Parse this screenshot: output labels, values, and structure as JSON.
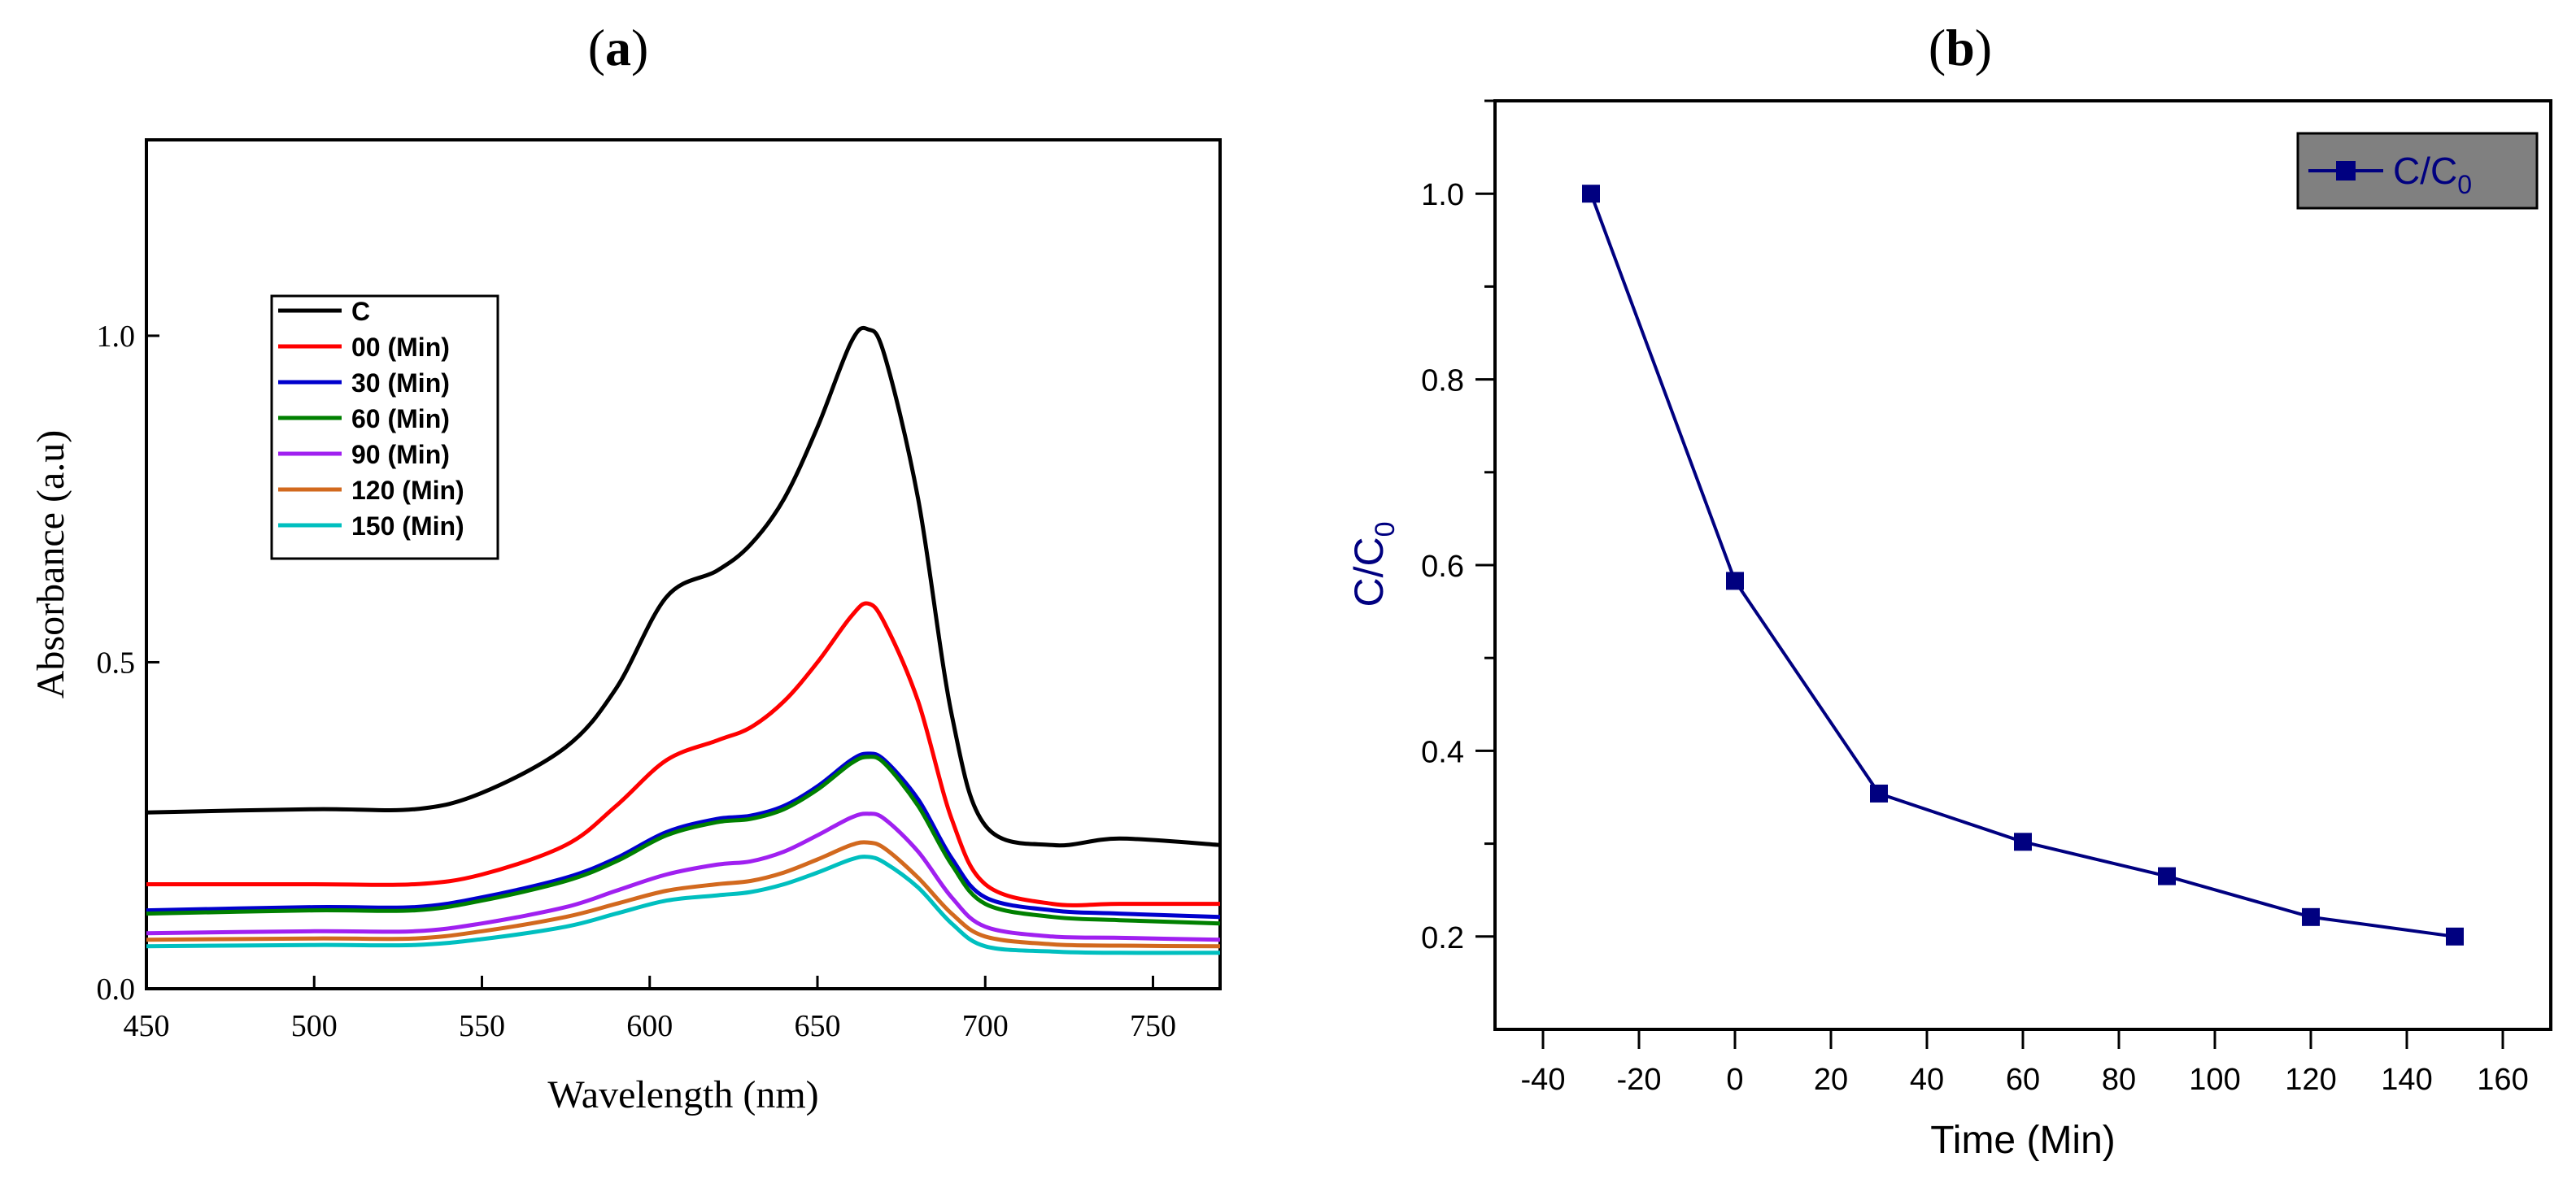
{
  "panel_labels": {
    "a": "a",
    "b": "b"
  },
  "chart_data": [
    {
      "id": "a",
      "type": "line",
      "title": "",
      "xlabel": "Wavelength (nm)",
      "ylabel": "Absorbance (a.u)",
      "xlim": [
        450,
        770
      ],
      "ylim": [
        0,
        1.3
      ],
      "xticks": [
        450,
        500,
        550,
        600,
        650,
        700,
        750
      ],
      "yticks": [
        0.0,
        0.5,
        1.0
      ],
      "ytick_labels": [
        "0.0",
        "0.5",
        "1.0"
      ],
      "legend_position": "left",
      "grid": false,
      "series": [
        {
          "name": "C",
          "color": "#000000",
          "x": [
            450,
            500,
            530,
            550,
            575,
            590,
            605,
            620,
            630,
            640,
            650,
            660,
            665,
            670,
            680,
            690,
            700,
            720,
            740,
            770
          ],
          "y": [
            0.27,
            0.275,
            0.275,
            0.3,
            0.37,
            0.46,
            0.6,
            0.64,
            0.68,
            0.75,
            0.86,
            0.99,
            1.01,
            0.97,
            0.75,
            0.42,
            0.25,
            0.22,
            0.23,
            0.22
          ]
        },
        {
          "name": "00 (Min)",
          "color": "#ff0000",
          "x": [
            450,
            500,
            530,
            550,
            575,
            590,
            605,
            620,
            630,
            640,
            650,
            660,
            665,
            670,
            680,
            690,
            700,
            720,
            740,
            770
          ],
          "y": [
            0.16,
            0.16,
            0.16,
            0.175,
            0.22,
            0.28,
            0.35,
            0.38,
            0.4,
            0.44,
            0.5,
            0.57,
            0.59,
            0.56,
            0.44,
            0.26,
            0.16,
            0.13,
            0.13,
            0.13
          ]
        },
        {
          "name": "30 (Min)",
          "color": "#0000cd",
          "x": [
            450,
            500,
            530,
            550,
            575,
            590,
            605,
            620,
            630,
            640,
            650,
            660,
            665,
            670,
            680,
            690,
            700,
            720,
            740,
            770
          ],
          "y": [
            0.12,
            0.125,
            0.125,
            0.14,
            0.17,
            0.2,
            0.24,
            0.26,
            0.265,
            0.28,
            0.31,
            0.35,
            0.36,
            0.35,
            0.29,
            0.2,
            0.14,
            0.12,
            0.115,
            0.11
          ]
        },
        {
          "name": "60 (Min)",
          "color": "#008000",
          "x": [
            450,
            500,
            530,
            550,
            575,
            590,
            605,
            620,
            630,
            640,
            650,
            660,
            665,
            670,
            680,
            690,
            700,
            720,
            740,
            770
          ],
          "y": [
            0.115,
            0.12,
            0.12,
            0.135,
            0.165,
            0.195,
            0.235,
            0.255,
            0.26,
            0.275,
            0.305,
            0.345,
            0.355,
            0.345,
            0.28,
            0.19,
            0.13,
            0.11,
            0.105,
            0.1
          ]
        },
        {
          "name": "90 (Min)",
          "color": "#a020f0",
          "x": [
            450,
            500,
            530,
            550,
            575,
            590,
            605,
            620,
            630,
            640,
            650,
            660,
            665,
            670,
            680,
            690,
            700,
            720,
            740,
            770
          ],
          "y": [
            0.085,
            0.088,
            0.088,
            0.1,
            0.125,
            0.15,
            0.175,
            0.19,
            0.195,
            0.21,
            0.235,
            0.262,
            0.268,
            0.26,
            0.21,
            0.14,
            0.095,
            0.08,
            0.078,
            0.075
          ]
        },
        {
          "name": "120 (Min)",
          "color": "#d2691e",
          "x": [
            450,
            500,
            530,
            550,
            575,
            590,
            605,
            620,
            630,
            640,
            650,
            660,
            665,
            670,
            680,
            690,
            700,
            720,
            740,
            770
          ],
          "y": [
            0.075,
            0.077,
            0.077,
            0.088,
            0.11,
            0.13,
            0.15,
            0.16,
            0.165,
            0.178,
            0.198,
            0.22,
            0.224,
            0.215,
            0.17,
            0.115,
            0.08,
            0.068,
            0.066,
            0.065
          ]
        },
        {
          "name": "150 (Min)",
          "color": "#00bfbf",
          "x": [
            450,
            500,
            530,
            550,
            575,
            590,
            605,
            620,
            630,
            640,
            650,
            660,
            665,
            670,
            680,
            690,
            700,
            720,
            740,
            770
          ],
          "y": [
            0.065,
            0.067,
            0.067,
            0.076,
            0.095,
            0.115,
            0.135,
            0.143,
            0.148,
            0.16,
            0.178,
            0.198,
            0.202,
            0.193,
            0.155,
            0.1,
            0.065,
            0.057,
            0.055,
            0.055
          ]
        }
      ]
    },
    {
      "id": "b",
      "type": "line",
      "title": "",
      "xlabel": "Time (Min)",
      "ylabel": "C/C",
      "ylabel_subscript": "0",
      "xlim": [
        -50,
        170
      ],
      "ylim": [
        0.1,
        1.1
      ],
      "xticks": [
        -40,
        -20,
        0,
        20,
        40,
        60,
        80,
        100,
        120,
        140,
        160
      ],
      "yticks": [
        0.2,
        0.4,
        0.6,
        0.8,
        1.0
      ],
      "ytick_labels": [
        "0.2",
        "0.4",
        "0.6",
        "0.8",
        "1.0"
      ],
      "legend_position": "top-right",
      "legend_background": "#808080",
      "grid": false,
      "series": [
        {
          "name": "C/C",
          "name_subscript": "0",
          "color": "#000080",
          "marker": "square",
          "x": [
            -30,
            0,
            30,
            60,
            90,
            120,
            150
          ],
          "y": [
            1.0,
            0.583,
            0.354,
            0.302,
            0.265,
            0.221,
            0.2
          ]
        }
      ]
    }
  ]
}
